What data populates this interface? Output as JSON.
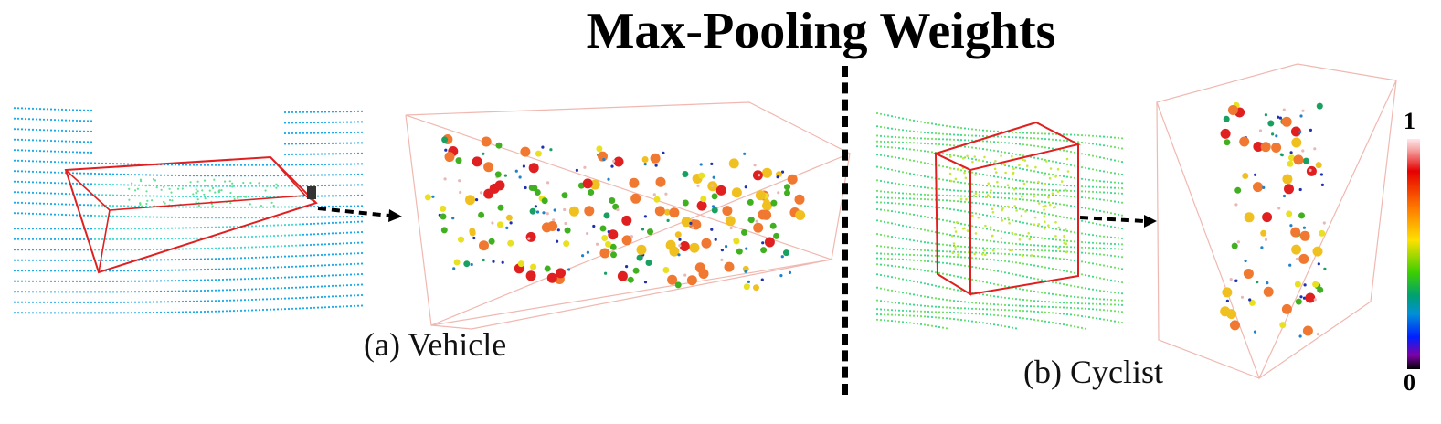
{
  "title": "Max-Pooling Weights",
  "panels": [
    {
      "caption": "(a) Vehicle"
    },
    {
      "caption": "(b) Cyclist"
    }
  ],
  "colorbar": {
    "max_label": "1",
    "min_label": "0"
  },
  "colors": {
    "lidar_scan": "#18a8e8",
    "bounding_box": "#e02020",
    "arrow": "#000000",
    "high_weight": "#e00000",
    "low_weight": "#0030c0"
  }
}
